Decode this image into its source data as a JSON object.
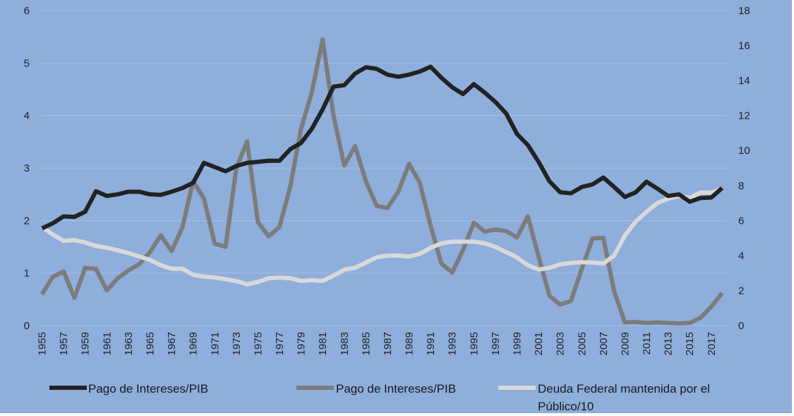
{
  "chart_data": {
    "type": "line",
    "title": "",
    "xlabel": "",
    "ylabel": "",
    "y2label": "",
    "grid": true,
    "legend_position": "bottom",
    "ylim": [
      0,
      6
    ],
    "y2lim": [
      0,
      18
    ],
    "yticks": [
      0,
      1,
      2,
      3,
      4,
      5,
      6
    ],
    "y2ticks": [
      0,
      2,
      4,
      6,
      8,
      10,
      12,
      14,
      16,
      18
    ],
    "x": [
      1955,
      1956,
      1957,
      1958,
      1959,
      1960,
      1961,
      1962,
      1963,
      1964,
      1965,
      1966,
      1967,
      1968,
      1969,
      1970,
      1971,
      1972,
      1973,
      1974,
      1975,
      1976,
      1977,
      1978,
      1979,
      1980,
      1981,
      1982,
      1983,
      1984,
      1985,
      1986,
      1987,
      1988,
      1989,
      1990,
      1991,
      1992,
      1993,
      1994,
      1995,
      1996,
      1997,
      1998,
      1999,
      2000,
      2001,
      2002,
      2003,
      2004,
      2005,
      2006,
      2007,
      2008,
      2009,
      2010,
      2011,
      2012,
      2013,
      2014,
      2015,
      2016,
      2017,
      2018
    ],
    "xtick_labels": [
      "1955",
      "1957",
      "1959",
      "1961",
      "1963",
      "1965",
      "1967",
      "1969",
      "1971",
      "1973",
      "1975",
      "1977",
      "1979",
      "1981",
      "1983",
      "1985",
      "1987",
      "1989",
      "1991",
      "1993",
      "1995",
      "1997",
      "1999",
      "2001",
      "2003",
      "2005",
      "2007",
      "2009",
      "2011",
      "2013",
      "2015",
      "2017"
    ],
    "series": [
      {
        "name": "Pago de Intereses/PIB",
        "axis": "left",
        "color": "#222222",
        "values": [
          1.85,
          1.95,
          2.08,
          2.07,
          2.17,
          2.56,
          2.47,
          2.5,
          2.55,
          2.55,
          2.5,
          2.49,
          2.55,
          2.62,
          2.72,
          3.1,
          3.02,
          2.94,
          3.04,
          3.1,
          3.12,
          3.14,
          3.14,
          3.36,
          3.48,
          3.75,
          4.12,
          4.55,
          4.58,
          4.8,
          4.92,
          4.89,
          4.78,
          4.74,
          4.78,
          4.84,
          4.93,
          4.72,
          4.54,
          4.41,
          4.6,
          4.44,
          4.26,
          4.04,
          3.65,
          3.44,
          3.12,
          2.75,
          2.54,
          2.52,
          2.64,
          2.69,
          2.82,
          2.64,
          2.45,
          2.54,
          2.74,
          2.61,
          2.47,
          2.5,
          2.36,
          2.43,
          2.44,
          2.62
        ]
      },
      {
        "name": "Pago de Intereses/PIB",
        "axis": "left",
        "color": "#7c7c7c",
        "values": [
          0.6,
          0.93,
          1.03,
          0.53,
          1.1,
          1.08,
          0.67,
          0.9,
          1.05,
          1.17,
          1.4,
          1.72,
          1.42,
          1.87,
          2.75,
          2.42,
          1.56,
          1.5,
          3.0,
          3.51,
          1.97,
          1.7,
          1.88,
          2.65,
          3.75,
          4.45,
          5.45,
          4.0,
          3.05,
          3.42,
          2.75,
          2.28,
          2.24,
          2.55,
          3.08,
          2.72,
          1.9,
          1.18,
          1.01,
          1.44,
          1.96,
          1.79,
          1.83,
          1.8,
          1.68,
          2.08,
          1.32,
          0.57,
          0.4,
          0.47,
          1.08,
          1.66,
          1.67,
          0.65,
          0.06,
          0.07,
          0.05,
          0.06,
          0.05,
          0.04,
          0.05,
          0.15,
          0.36,
          0.62
        ]
      },
      {
        "name": "Deuda Federal mantenida por el Público/10",
        "axis": "right",
        "color": "#d9d9d9",
        "values": [
          5.65,
          5.2,
          4.85,
          4.88,
          4.75,
          4.55,
          4.45,
          4.3,
          4.15,
          3.95,
          3.75,
          3.45,
          3.25,
          3.25,
          2.9,
          2.8,
          2.75,
          2.65,
          2.55,
          2.35,
          2.5,
          2.7,
          2.75,
          2.7,
          2.55,
          2.6,
          2.55,
          2.85,
          3.2,
          3.3,
          3.6,
          3.9,
          4.0,
          4.0,
          3.95,
          4.1,
          4.45,
          4.7,
          4.8,
          4.8,
          4.8,
          4.7,
          4.5,
          4.2,
          3.9,
          3.45,
          3.2,
          3.3,
          3.5,
          3.58,
          3.62,
          3.6,
          3.55,
          4.0,
          5.15,
          5.95,
          6.5,
          7.0,
          7.25,
          7.4,
          7.3,
          7.6,
          7.6,
          7.8
        ]
      }
    ]
  }
}
